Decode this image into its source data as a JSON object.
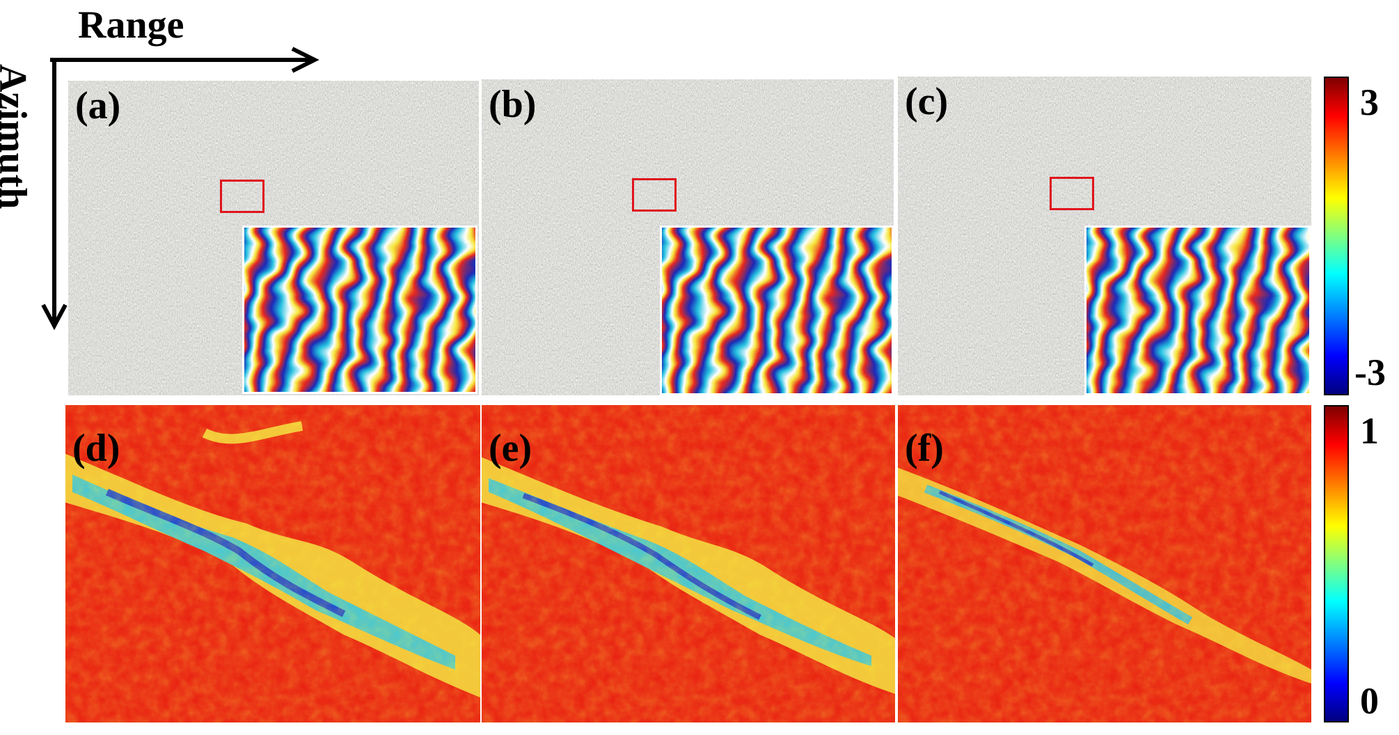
{
  "axes": {
    "range_label": "Range",
    "azimuth_label": "Azimuth"
  },
  "panels": [
    {
      "label": "(a)"
    },
    {
      "label": "(b)"
    },
    {
      "label": "(c)"
    },
    {
      "label": "(d)"
    },
    {
      "label": "(e)"
    },
    {
      "label": "(f)"
    }
  ],
  "colorbar_phase": {
    "max_label": "3",
    "min_label": "-3",
    "colormap": "jet"
  },
  "colorbar_coherence": {
    "max_label": "1",
    "min_label": "0",
    "colormap": "jet"
  },
  "colors": {
    "selection_box": "#e0141b",
    "coherence_high": "#e8230f",
    "coherence_low": "#1a7dd6",
    "phase_background": "#8c8c80"
  }
}
